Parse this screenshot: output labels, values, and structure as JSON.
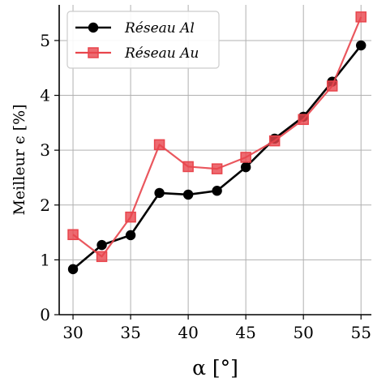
{
  "chart_data": {
    "type": "line",
    "xlabel": "α [°]",
    "ylabel": "Meilleur ϵ [%]",
    "xlim": [
      28.8,
      55.9
    ],
    "ylim": [
      0,
      5.65
    ],
    "xticks": [
      30,
      35,
      40,
      45,
      50,
      55
    ],
    "yticks": [
      0,
      1,
      2,
      3,
      4,
      5
    ],
    "grid": true,
    "legend_position": "top-left",
    "x": [
      30,
      32.5,
      35,
      37.5,
      40,
      42.5,
      45,
      47.5,
      50,
      52.5,
      55
    ],
    "series": [
      {
        "name": "Réseau Al",
        "color": "#000000",
        "marker": "circle",
        "values": [
          0.83,
          1.27,
          1.45,
          2.22,
          2.19,
          2.26,
          2.69,
          3.21,
          3.61,
          4.25,
          4.91
        ]
      },
      {
        "name": "Réseau Au",
        "color": "#e8454c",
        "marker": "square",
        "values": [
          1.46,
          1.06,
          1.78,
          3.1,
          2.7,
          2.66,
          2.87,
          3.17,
          3.56,
          4.17,
          5.43
        ]
      }
    ]
  }
}
